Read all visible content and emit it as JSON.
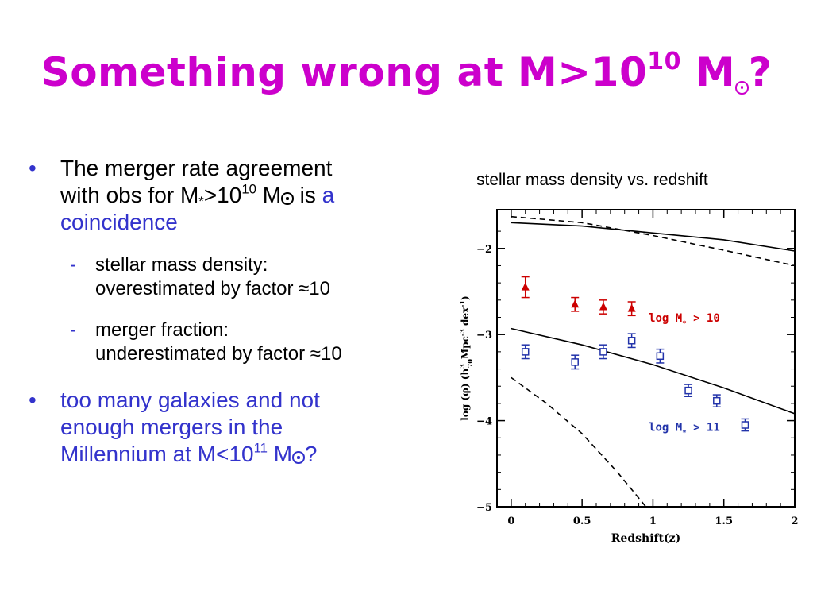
{
  "slide": {
    "title": {
      "prefix": "Something wrong at M>10",
      "exp": "10",
      "mid": " M",
      "suffix": "?"
    },
    "bullet1": {
      "line1": "The merger rate agreement",
      "part2": "with obs for M",
      "sub_star": "*",
      "part3": ">10",
      "exp": "10",
      "part4": " M",
      "part5": " is ",
      "accent": "a coincidence"
    },
    "sub1": {
      "line1": "stellar mass density:",
      "line2": "overestimated by factor ≈10"
    },
    "sub2": {
      "line1": "merger fraction:",
      "line2": "underestimated by factor ≈10"
    },
    "bullet2": {
      "line1": "too many galaxies and not",
      "line2": "enough mergers in the",
      "line3": "Millennium at M<10",
      "exp": "11",
      "part4": " M",
      "suffix": "?"
    },
    "bullet_char": "•",
    "dash_char": "-"
  },
  "chart_caption": "stellar mass density vs. redshift",
  "colors": {
    "title": "#cc00cc",
    "accent": "#3333cc",
    "red_points": "#cc0000",
    "blue_points": "#2233aa"
  },
  "chart_data": {
    "type": "scatter",
    "xlabel": "Redshift(z)",
    "ylabel_parts": {
      "a": "log (φ) (h",
      "b": "3",
      "c": "70",
      "d": "Mpc",
      "e": "-3",
      "f": " dex",
      "g": "-1",
      "h": ")"
    },
    "xlim": [
      -0.1,
      2.0
    ],
    "ylim": [
      -5.0,
      -1.55
    ],
    "xticks": [
      0,
      0.5,
      1,
      1.5,
      2
    ],
    "xtick_labels": [
      "0",
      "0.5",
      "1",
      "1.5",
      "2"
    ],
    "yticks": [
      -2,
      -3,
      -4,
      -5
    ],
    "ytick_labels": [
      "−2",
      "−3",
      "−4",
      "−5"
    ],
    "grid": false,
    "annotations": [
      {
        "name": "annotation-logm10",
        "parts": [
          "log M",
          "*",
          " > 10"
        ],
        "x": 0.97,
        "y": -2.85,
        "color": "#cc0000"
      },
      {
        "name": "annotation-logm11",
        "parts": [
          "log M",
          "*",
          " > 11"
        ],
        "x": 0.97,
        "y": -4.12,
        "color": "#2233aa"
      }
    ],
    "series": [
      {
        "marker": "triangle",
        "color": "#cc0000",
        "points": [
          {
            "x": 0.1,
            "y": -2.45,
            "err": 0.12
          },
          {
            "x": 0.45,
            "y": -2.65,
            "err": 0.08
          },
          {
            "x": 0.65,
            "y": -2.68,
            "err": 0.08
          },
          {
            "x": 0.85,
            "y": -2.7,
            "err": 0.08
          }
        ]
      },
      {
        "marker": "square",
        "color": "#2233aa",
        "points": [
          {
            "x": 0.1,
            "y": -3.2,
            "err": 0.08
          },
          {
            "x": 0.45,
            "y": -3.32,
            "err": 0.08
          },
          {
            "x": 0.65,
            "y": -3.2,
            "err": 0.08
          },
          {
            "x": 0.85,
            "y": -3.07,
            "err": 0.08
          },
          {
            "x": 1.05,
            "y": -3.25,
            "err": 0.08
          },
          {
            "x": 1.25,
            "y": -3.65,
            "err": 0.07
          },
          {
            "x": 1.45,
            "y": -3.77,
            "err": 0.07
          },
          {
            "x": 1.65,
            "y": -4.05,
            "err": 0.07
          }
        ]
      }
    ],
    "lines": [
      {
        "style": "solid",
        "points": [
          [
            0,
            -1.7
          ],
          [
            0.5,
            -1.74
          ],
          [
            1.0,
            -1.82
          ],
          [
            1.5,
            -1.9
          ],
          [
            2.0,
            -2.03
          ]
        ]
      },
      {
        "style": "dashed",
        "points": [
          [
            0,
            -1.63
          ],
          [
            0.5,
            -1.7
          ],
          [
            1.0,
            -1.85
          ],
          [
            1.5,
            -2.02
          ],
          [
            2.0,
            -2.2
          ]
        ]
      },
      {
        "style": "solid",
        "points": [
          [
            0,
            -2.93
          ],
          [
            0.5,
            -3.12
          ],
          [
            1.0,
            -3.35
          ],
          [
            1.5,
            -3.62
          ],
          [
            2.0,
            -3.92
          ]
        ]
      },
      {
        "style": "dashed",
        "points": [
          [
            0,
            -3.5
          ],
          [
            0.25,
            -3.8
          ],
          [
            0.5,
            -4.15
          ],
          [
            0.75,
            -4.6
          ],
          [
            0.95,
            -5.0
          ]
        ]
      }
    ]
  }
}
